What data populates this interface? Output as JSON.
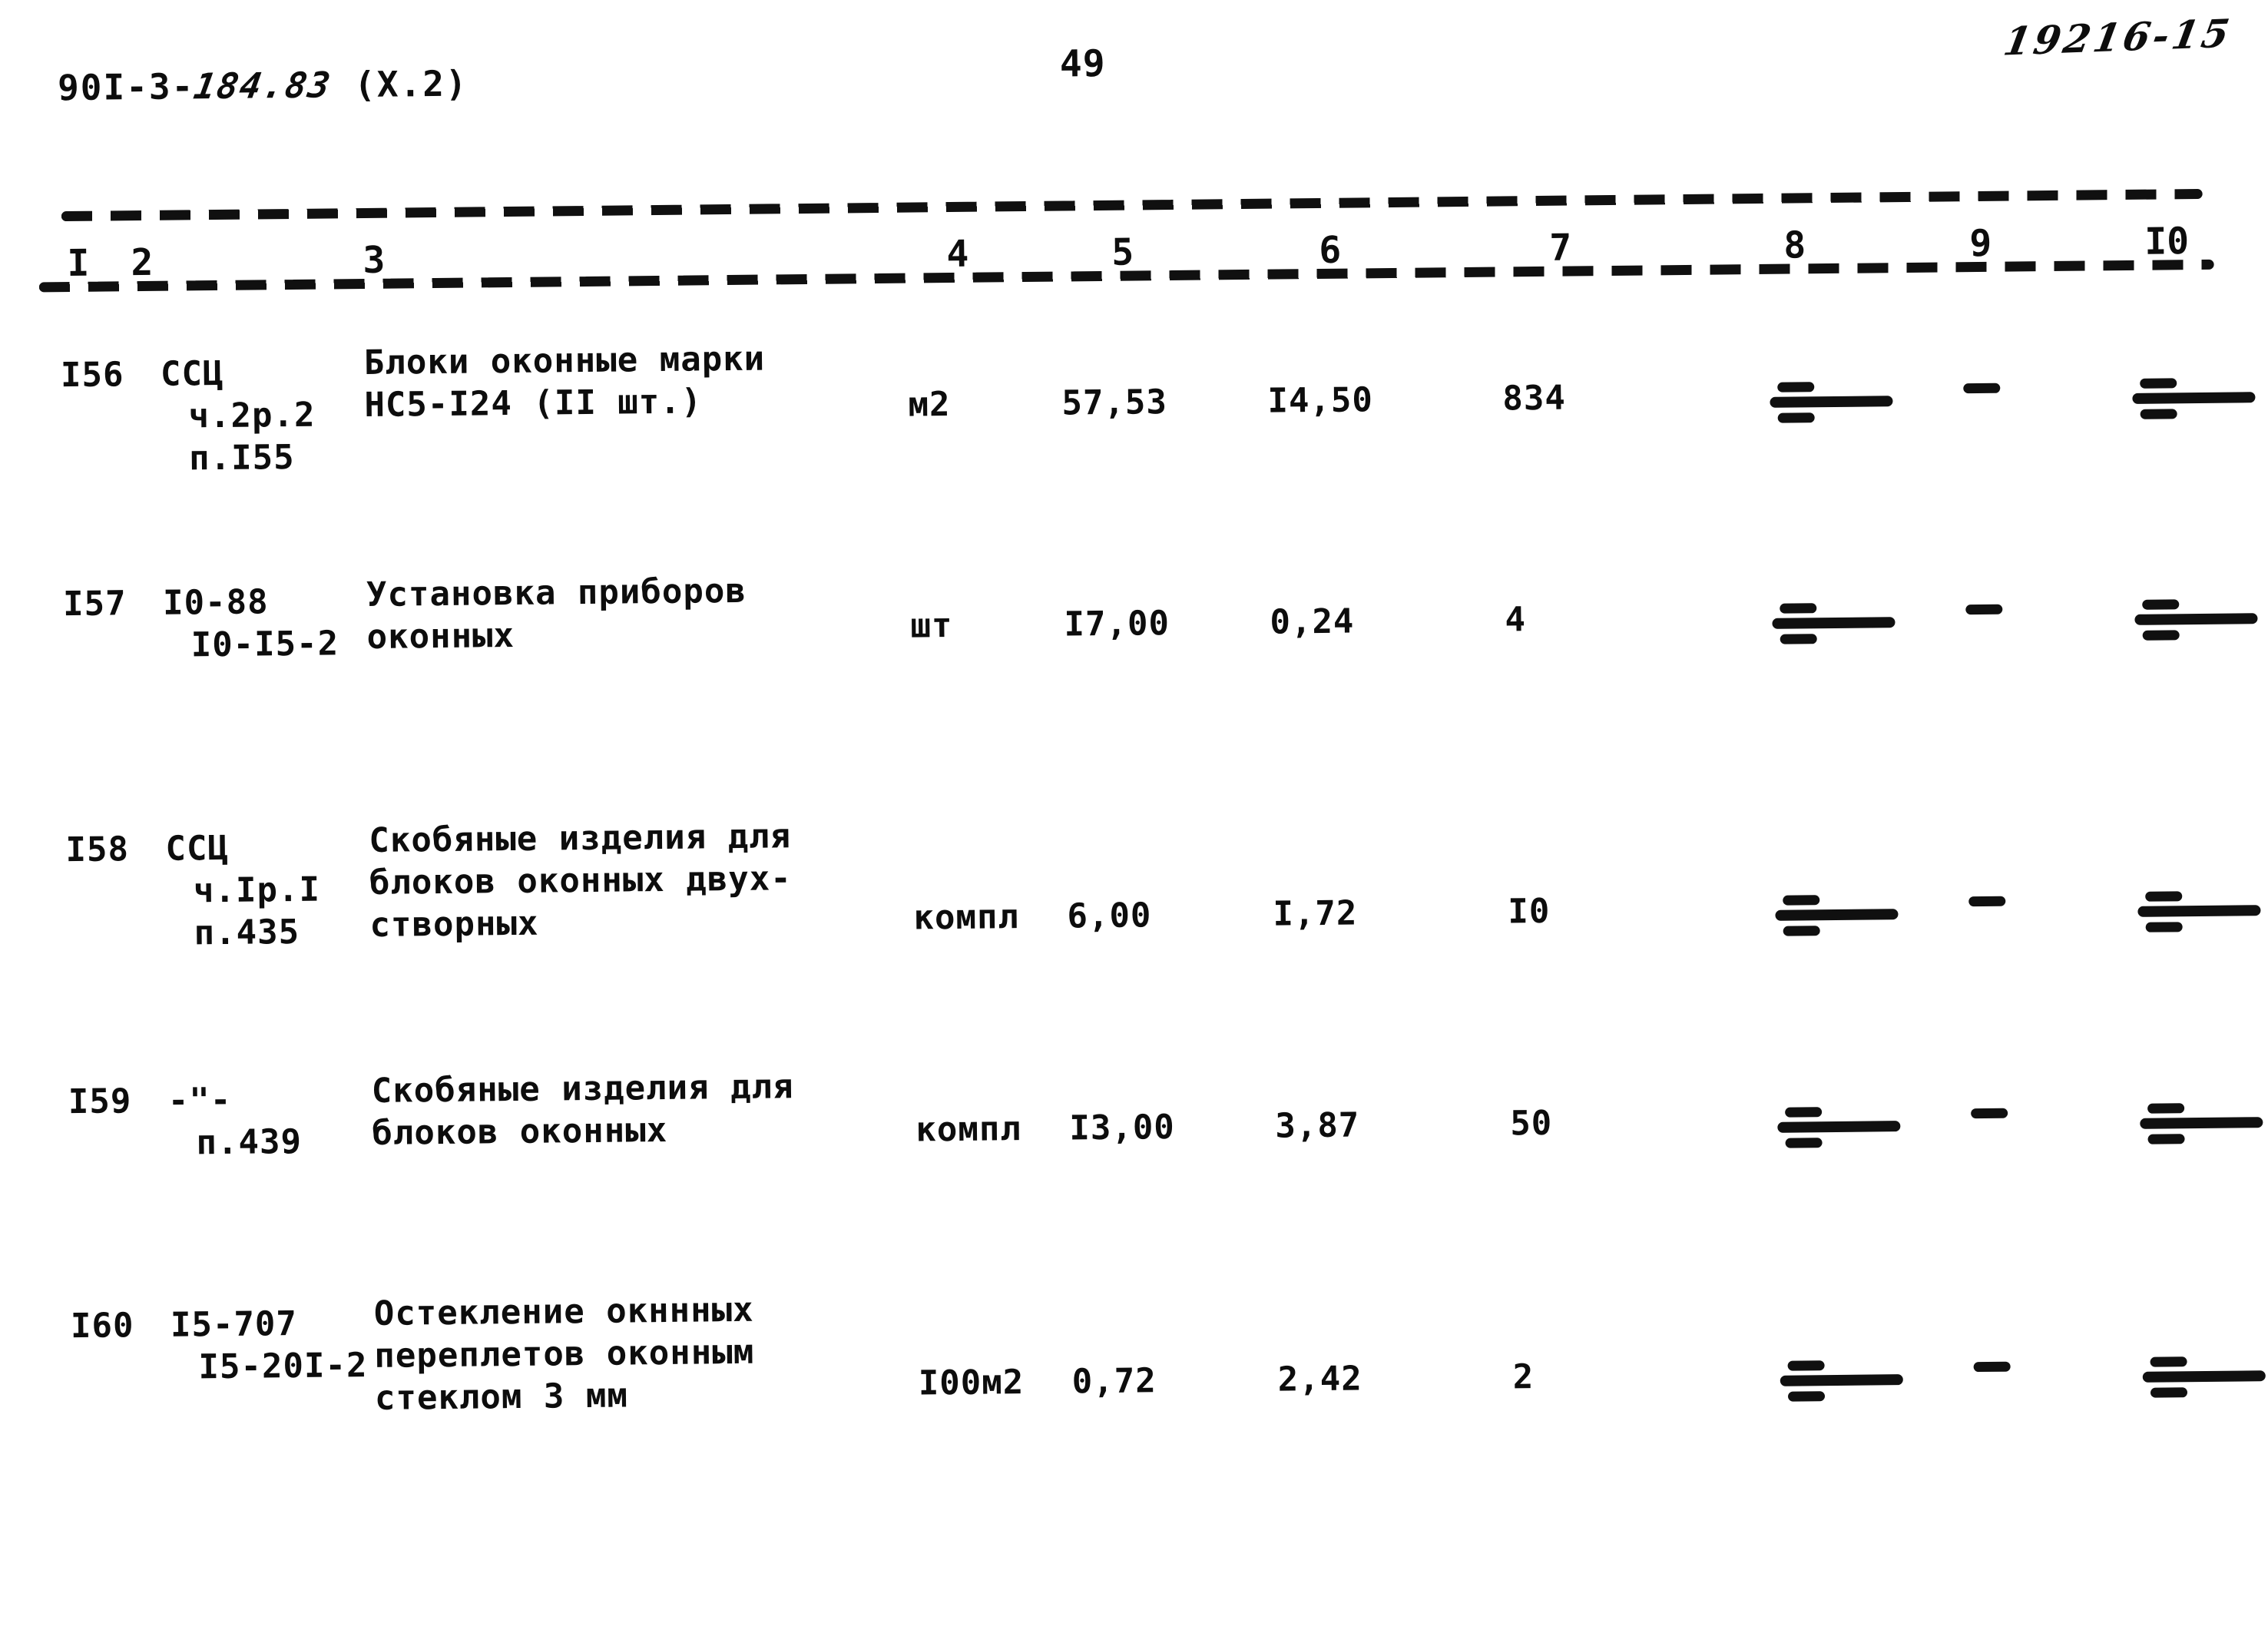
{
  "page": {
    "doc_number_prefix": "90I-3-",
    "doc_number_middle": "184.83",
    "doc_number_suffix": " (X.2)",
    "page_number": "49",
    "handwritten_ref": "19216-15"
  },
  "table": {
    "column_headers": [
      "I",
      "2",
      "3",
      "4",
      "5",
      "6",
      "7",
      "8",
      "9",
      "I0"
    ],
    "empty_cell_marker": "—",
    "rows": [
      {
        "item_no": "I56",
        "code_lines": [
          "ССЦ",
          "ч.2р.2",
          "п.I55"
        ],
        "description_lines": [
          "Блоки оконные марки",
          "НС5-I24 (II шт.)"
        ],
        "unit": "м2",
        "quantity": "57,53",
        "unit_price": "I4,50",
        "total": "834"
      },
      {
        "item_no": "I57",
        "code_lines": [
          "I0-88",
          "I0-I5-2"
        ],
        "description_lines": [
          "Установка приборов",
          "оконных"
        ],
        "unit": "шт",
        "quantity": "I7,00",
        "unit_price": "0,24",
        "total": "4"
      },
      {
        "item_no": "I58",
        "code_lines": [
          "ССЦ",
          "ч.Iр.I",
          "п.435"
        ],
        "description_lines": [
          "Скобяные изделия для",
          "блоков оконных двух-",
          "створных"
        ],
        "unit": "компл",
        "quantity": "6,00",
        "unit_price": "I,72",
        "total": "I0"
      },
      {
        "item_no": "I59",
        "code_lines": [
          "-\"-",
          "п.439"
        ],
        "description_lines": [
          "Скобяные изделия для",
          "блоков оконных"
        ],
        "unit": "компл",
        "quantity": "I3,00",
        "unit_price": "3,87",
        "total": "50"
      },
      {
        "item_no": "I60",
        "code_lines": [
          "I5-707",
          "I5-20I-2"
        ],
        "description_lines": [
          "Остекление окннных",
          "переплетов оконным",
          "стеклом 3 мм"
        ],
        "unit": "I00м2",
        "quantity": "0,72",
        "unit_price": "2,42",
        "total": "2"
      }
    ]
  }
}
